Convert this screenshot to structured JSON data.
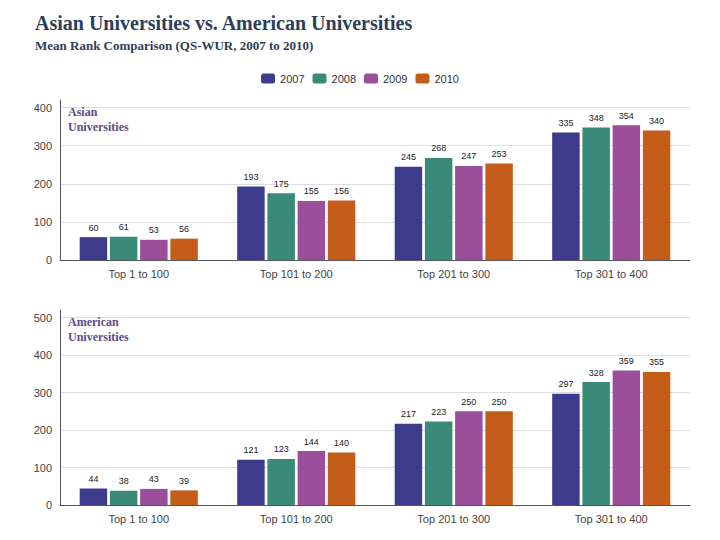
{
  "chart_data": [
    {
      "type": "bar",
      "title": "Asian Universities vs. American Universities",
      "subtitle": "Mean Rank Comparison (QS-WUR, 2007 to 2010)",
      "annotation": "Asian\nUniversities",
      "categories": [
        "Top 1 to 100",
        "Top 101 to 200",
        "Top 201 to 300",
        "Top 301 to 400"
      ],
      "series": [
        {
          "name": "2007",
          "color": "#3d3b8e",
          "values": [
            60,
            193,
            245,
            335
          ]
        },
        {
          "name": "2008",
          "color": "#3a8a7a",
          "values": [
            61,
            175,
            268,
            348
          ]
        },
        {
          "name": "2009",
          "color": "#9b4f9b",
          "values": [
            53,
            155,
            247,
            354
          ]
        },
        {
          "name": "2010",
          "color": "#c45c1a",
          "values": [
            56,
            156,
            253,
            340
          ]
        }
      ],
      "ylim": [
        0,
        420
      ],
      "yticks": [
        0,
        100,
        200,
        300,
        400
      ],
      "grid": true,
      "legend": "top",
      "data_labels": true
    },
    {
      "type": "bar",
      "annotation": "American\nUniversities",
      "categories": [
        "Top 1 to 100",
        "Top 101 to 200",
        "Top 201 to 300",
        "Top 301 to 400"
      ],
      "series": [
        {
          "name": "2007",
          "color": "#3d3b8e",
          "values": [
            44,
            121,
            217,
            297
          ]
        },
        {
          "name": "2008",
          "color": "#3a8a7a",
          "values": [
            38,
            123,
            223,
            328
          ]
        },
        {
          "name": "2009",
          "color": "#9b4f9b",
          "values": [
            43,
            144,
            250,
            359
          ]
        },
        {
          "name": "2010",
          "color": "#c45c1a",
          "values": [
            39,
            140,
            250,
            355
          ]
        }
      ],
      "ylim": [
        0,
        520
      ],
      "yticks": [
        0,
        100,
        200,
        300,
        400,
        500
      ],
      "grid": true,
      "data_labels": true
    }
  ]
}
